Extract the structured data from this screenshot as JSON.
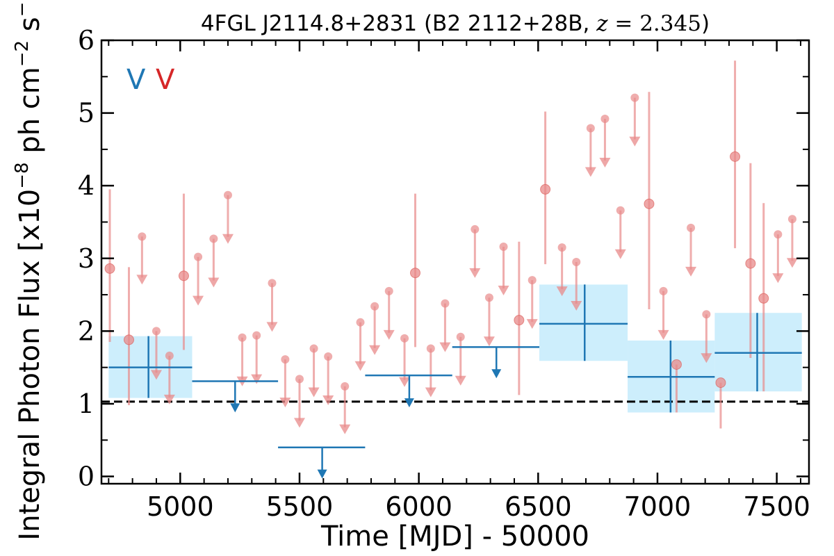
{
  "chart_data": {
    "type": "scatter",
    "title": "4FGL J2114.8+2831 (B2 2112+28B, z = 2.345)",
    "xlabel": "Time [MJD] - 50000",
    "ylabel": "Integral Photon Flux [x10⁻⁸ ph cm⁻² s⁻¹]",
    "xlim": [
      4670,
      7635
    ],
    "ylim": [
      -0.1,
      6.0
    ],
    "x_ticks": [
      5000,
      5500,
      6000,
      6500,
      7000,
      7500
    ],
    "y_ticks": [
      0,
      1,
      2,
      3,
      4,
      5,
      6
    ],
    "reference_line": {
      "y": 1.03,
      "style": "dashed",
      "color": "#000000"
    },
    "legend": {
      "placement": "top-left",
      "entries": [
        {
          "label": "V",
          "color": "#1f77b4"
        },
        {
          "label": "V",
          "color": "#d62728"
        }
      ]
    },
    "colors": {
      "yearly": "#1f77b4",
      "yearly_band": "#cdeefc",
      "monthly": "#e88a8a"
    },
    "series": [
      {
        "name": "yearly",
        "detections": [
          {
            "x": 4867,
            "x_lo": 4700,
            "x_hi": 5050,
            "y": 1.5,
            "y_lo": 1.08,
            "y_hi": 1.93
          },
          {
            "x": 6695,
            "x_lo": 6505,
            "x_hi": 6875,
            "y": 2.1,
            "y_lo": 1.59,
            "y_hi": 2.64
          },
          {
            "x": 7055,
            "x_lo": 6875,
            "x_hi": 7240,
            "y": 1.37,
            "y_lo": 0.88,
            "y_hi": 1.87
          },
          {
            "x": 7418,
            "x_lo": 7240,
            "x_hi": 7605,
            "y": 1.7,
            "y_lo": 1.17,
            "y_hi": 2.25
          }
        ],
        "upper_limits": [
          {
            "x": 5230,
            "x_lo": 5050,
            "x_hi": 5410,
            "y": 1.31,
            "arrow_to": 0.9
          },
          {
            "x": 5595,
            "x_lo": 5410,
            "x_hi": 5775,
            "y": 0.4,
            "arrow_to": -0.01
          },
          {
            "x": 5960,
            "x_lo": 5775,
            "x_hi": 6140,
            "y": 1.39,
            "arrow_to": 0.97
          },
          {
            "x": 6325,
            "x_lo": 6140,
            "x_hi": 6505,
            "y": 1.78,
            "arrow_to": 1.37
          }
        ]
      },
      {
        "name": "monthly",
        "detections": [
          {
            "x": 4705,
            "y": 2.86,
            "y_lo": 1.85,
            "y_hi": 3.95
          },
          {
            "x": 4785,
            "y": 1.88,
            "y_lo": 0.98,
            "y_hi": 2.88
          },
          {
            "x": 5015,
            "y": 2.76,
            "y_lo": 1.74,
            "y_hi": 3.89
          },
          {
            "x": 5985,
            "y": 2.8,
            "y_lo": 1.78,
            "y_hi": 3.89
          },
          {
            "x": 6420,
            "y": 2.15,
            "y_lo": 1.12,
            "y_hi": 3.23
          },
          {
            "x": 6530,
            "y": 3.95,
            "y_lo": 2.92,
            "y_hi": 5.02
          },
          {
            "x": 6965,
            "y": 3.75,
            "y_lo": 2.3,
            "y_hi": 5.29
          },
          {
            "x": 7080,
            "y": 1.54,
            "y_lo": 0.88,
            "y_hi": 1.54
          },
          {
            "x": 7265,
            "y": 1.29,
            "y_lo": 0.66,
            "y_hi": 1.29
          },
          {
            "x": 7325,
            "y": 4.4,
            "y_lo": 3.14,
            "y_hi": 5.72
          },
          {
            "x": 7390,
            "y": 2.93,
            "y_lo": 1.63,
            "y_hi": 4.31
          },
          {
            "x": 7445,
            "y": 2.45,
            "y_lo": 1.17,
            "y_hi": 3.76
          }
        ],
        "upper_limits": [
          {
            "x": 4840,
            "y": 3.3,
            "arrow_to": 2.66
          },
          {
            "x": 4900,
            "y": 2.0,
            "arrow_to": 1.35
          },
          {
            "x": 4955,
            "y": 1.66,
            "arrow_to": 1.01
          },
          {
            "x": 5075,
            "y": 3.02,
            "arrow_to": 2.37
          },
          {
            "x": 5140,
            "y": 3.27,
            "arrow_to": 2.62
          },
          {
            "x": 5200,
            "y": 3.87,
            "arrow_to": 3.22
          },
          {
            "x": 5260,
            "y": 1.91,
            "arrow_to": 1.26
          },
          {
            "x": 5320,
            "y": 1.94,
            "arrow_to": 1.29
          },
          {
            "x": 5385,
            "y": 2.66,
            "arrow_to": 2.01
          },
          {
            "x": 5440,
            "y": 1.61,
            "arrow_to": 0.97
          },
          {
            "x": 5500,
            "y": 1.34,
            "arrow_to": 0.69
          },
          {
            "x": 5560,
            "y": 1.76,
            "arrow_to": 1.11
          },
          {
            "x": 5620,
            "y": 1.65,
            "arrow_to": 1.0
          },
          {
            "x": 5690,
            "y": 1.24,
            "arrow_to": 0.6
          },
          {
            "x": 5755,
            "y": 2.12,
            "arrow_to": 1.47
          },
          {
            "x": 5815,
            "y": 2.34,
            "arrow_to": 1.69
          },
          {
            "x": 5875,
            "y": 2.55,
            "arrow_to": 1.9
          },
          {
            "x": 5940,
            "y": 1.9,
            "arrow_to": 1.25
          },
          {
            "x": 6050,
            "y": 1.76,
            "arrow_to": 1.11
          },
          {
            "x": 6110,
            "y": 2.38,
            "arrow_to": 1.73
          },
          {
            "x": 6175,
            "y": 1.92,
            "arrow_to": 1.27
          },
          {
            "x": 6235,
            "y": 3.4,
            "arrow_to": 2.75
          },
          {
            "x": 6295,
            "y": 2.46,
            "arrow_to": 1.81
          },
          {
            "x": 6355,
            "y": 3.16,
            "arrow_to": 2.51
          },
          {
            "x": 6475,
            "y": 2.7,
            "arrow_to": 2.05
          },
          {
            "x": 6600,
            "y": 3.15,
            "arrow_to": 2.5
          },
          {
            "x": 6660,
            "y": 2.95,
            "arrow_to": 2.3
          },
          {
            "x": 6720,
            "y": 4.79,
            "arrow_to": 4.14
          },
          {
            "x": 6780,
            "y": 4.92,
            "arrow_to": 4.27
          },
          {
            "x": 6845,
            "y": 3.66,
            "arrow_to": 3.01
          },
          {
            "x": 6905,
            "y": 5.21,
            "arrow_to": 4.56
          },
          {
            "x": 7025,
            "y": 2.55,
            "arrow_to": 1.9
          },
          {
            "x": 7140,
            "y": 3.42,
            "arrow_to": 2.77
          },
          {
            "x": 7205,
            "y": 2.23,
            "arrow_to": 1.58
          },
          {
            "x": 7505,
            "y": 3.33,
            "arrow_to": 2.68
          },
          {
            "x": 7565,
            "y": 3.54,
            "arrow_to": 2.89
          }
        ]
      }
    ]
  }
}
